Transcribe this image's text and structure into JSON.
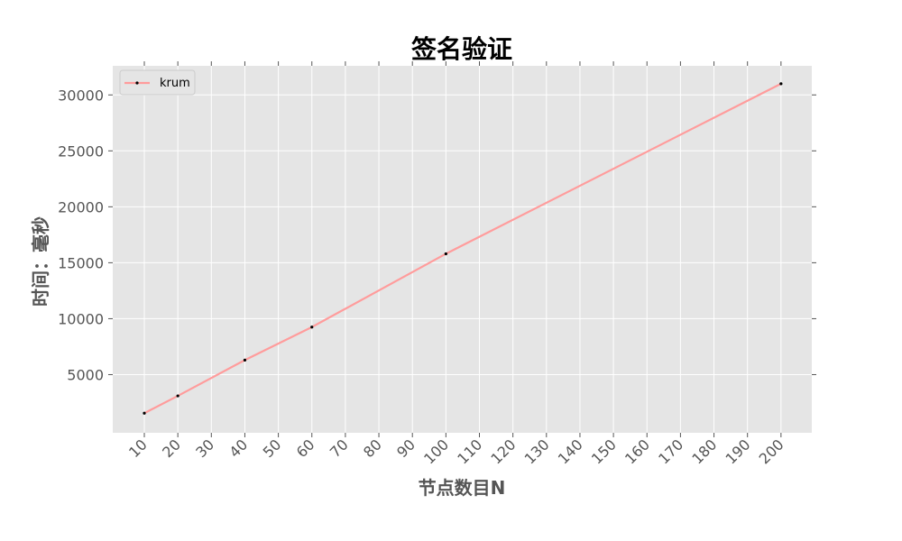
{
  "chart_data": {
    "type": "line",
    "title": "签名验证",
    "xlabel": "节点数目N",
    "ylabel": "时间：毫秒",
    "categories": [
      "10",
      "20",
      "30",
      "40",
      "50",
      "60",
      "70",
      "80",
      "90",
      "100",
      "110",
      "120",
      "130",
      "140",
      "150",
      "160",
      "170",
      "180",
      "190",
      "200"
    ],
    "y_ticks": [
      5000,
      10000,
      15000,
      20000,
      25000,
      30000
    ],
    "ylim": [
      -200,
      32600
    ],
    "grid": true,
    "legend": {
      "position": "top-left"
    },
    "series": [
      {
        "name": "krum",
        "x": [
          "10",
          "20",
          "40",
          "60",
          "100",
          "200"
        ],
        "values": [
          1550,
          3100,
          6300,
          9250,
          15800,
          31000
        ],
        "line_color": "#ff9c9c",
        "marker_color": "#000000"
      }
    ]
  },
  "colors": {
    "plot_background": "#e5e5e5",
    "grid": "#ffffff",
    "line": "#ff9c9c"
  }
}
